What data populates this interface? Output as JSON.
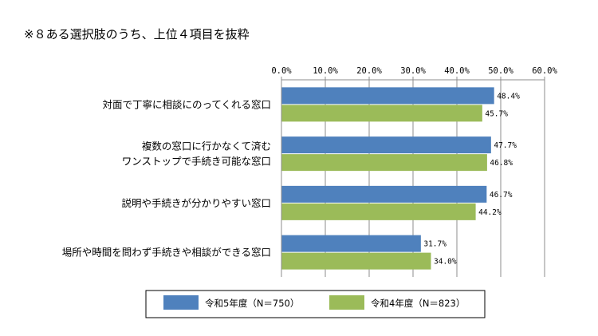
{
  "chart_data": {
    "type": "bar",
    "orientation": "horizontal",
    "title": "※８ある選択肢のうち、上位４項目を抜粋",
    "categories": [
      [
        "対面で丁寧に相談にのってくれる窓口"
      ],
      [
        "複数の窓口に行かなくて済む",
        "ワンストップで手続き可能な窓口"
      ],
      [
        "説明や手続きが分かりやすい窓口"
      ],
      [
        "場所や時間を問わず手続きや相談ができる窓口"
      ]
    ],
    "series": [
      {
        "name": "令和5年度（N＝750）",
        "color": "#4F81BD",
        "values": [
          48.4,
          47.7,
          46.7,
          31.7
        ],
        "labels": [
          "48.4%",
          "47.7%",
          "46.7%",
          "31.7%"
        ]
      },
      {
        "name": "令和4年度（N＝823）",
        "color": "#9BBB59",
        "values": [
          45.7,
          46.8,
          44.2,
          34.0
        ],
        "labels": [
          "45.7%",
          "46.8%",
          "44.2%",
          "34.0%"
        ]
      }
    ],
    "xlim": [
      0,
      60
    ],
    "xticks": [
      "0.0%",
      "10.0%",
      "20.0%",
      "30.0%",
      "40.0%",
      "50.0%",
      "60.0%"
    ],
    "xaxis_position": "top",
    "grid": true,
    "legend_position": "bottom"
  }
}
